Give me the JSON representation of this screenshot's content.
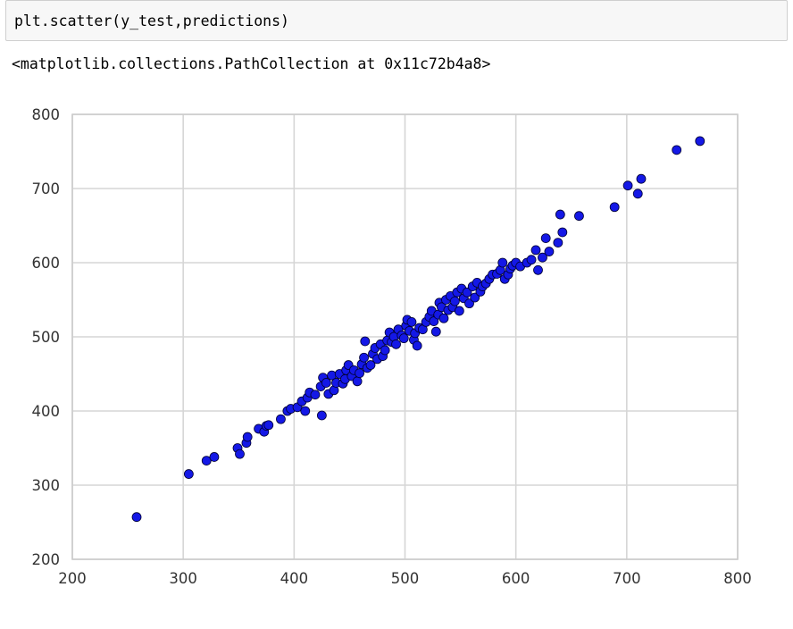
{
  "code_cell": {
    "code": "plt.scatter(y_test,predictions)"
  },
  "output": {
    "text": "<matplotlib.collections.PathCollection at 0x11c72b4a8>"
  },
  "chart_data": {
    "type": "scatter",
    "title": "",
    "xlabel": "",
    "ylabel": "",
    "xlim": [
      200,
      800
    ],
    "ylim": [
      200,
      800
    ],
    "xticks": [
      200,
      300,
      400,
      500,
      600,
      700,
      800
    ],
    "yticks": [
      200,
      300,
      400,
      500,
      600,
      700,
      800
    ],
    "grid": true,
    "marker_color": "#1418e6",
    "marker_edge_color": "#000033",
    "axes_edge_color": "#cccccc",
    "grid_color": "#d6d6d6",
    "points": [
      [
        258,
        257
      ],
      [
        305,
        315
      ],
      [
        321,
        333
      ],
      [
        328,
        338
      ],
      [
        349,
        350
      ],
      [
        351,
        342
      ],
      [
        357,
        357
      ],
      [
        358,
        365
      ],
      [
        368,
        376
      ],
      [
        373,
        372
      ],
      [
        375,
        380
      ],
      [
        377,
        381
      ],
      [
        388,
        389
      ],
      [
        394,
        400
      ],
      [
        397,
        403
      ],
      [
        403,
        405
      ],
      [
        407,
        413
      ],
      [
        410,
        400
      ],
      [
        412,
        418
      ],
      [
        414,
        425
      ],
      [
        419,
        422
      ],
      [
        424,
        433
      ],
      [
        425,
        394
      ],
      [
        426,
        445
      ],
      [
        429,
        438
      ],
      [
        431,
        423
      ],
      [
        434,
        448
      ],
      [
        436,
        428
      ],
      [
        438,
        438
      ],
      [
        441,
        450
      ],
      [
        444,
        437
      ],
      [
        446,
        443
      ],
      [
        447,
        455
      ],
      [
        449,
        462
      ],
      [
        452,
        447
      ],
      [
        454,
        455
      ],
      [
        457,
        440
      ],
      [
        459,
        451
      ],
      [
        461,
        463
      ],
      [
        463,
        472
      ],
      [
        464,
        494
      ],
      [
        466,
        458
      ],
      [
        469,
        462
      ],
      [
        471,
        477
      ],
      [
        473,
        485
      ],
      [
        475,
        470
      ],
      [
        478,
        490
      ],
      [
        480,
        474
      ],
      [
        482,
        482
      ],
      [
        484,
        495
      ],
      [
        486,
        506
      ],
      [
        488,
        493
      ],
      [
        490,
        500
      ],
      [
        492,
        490
      ],
      [
        494,
        510
      ],
      [
        497,
        502
      ],
      [
        499,
        498
      ],
      [
        501,
        515
      ],
      [
        502,
        523
      ],
      [
        504,
        508
      ],
      [
        506,
        520
      ],
      [
        508,
        496
      ],
      [
        509,
        505
      ],
      [
        511,
        488
      ],
      [
        513,
        512
      ],
      [
        516,
        510
      ],
      [
        519,
        520
      ],
      [
        522,
        527
      ],
      [
        524,
        535
      ],
      [
        526,
        521
      ],
      [
        528,
        507
      ],
      [
        530,
        530
      ],
      [
        531,
        546
      ],
      [
        533,
        540
      ],
      [
        535,
        525
      ],
      [
        537,
        550
      ],
      [
        539,
        536
      ],
      [
        541,
        555
      ],
      [
        543,
        540
      ],
      [
        545,
        548
      ],
      [
        547,
        560
      ],
      [
        549,
        535
      ],
      [
        551,
        565
      ],
      [
        553,
        552
      ],
      [
        556,
        560
      ],
      [
        558,
        545
      ],
      [
        561,
        568
      ],
      [
        563,
        553
      ],
      [
        565,
        573
      ],
      [
        568,
        561
      ],
      [
        570,
        568
      ],
      [
        573,
        572
      ],
      [
        576,
        578
      ],
      [
        579,
        584
      ],
      [
        583,
        585
      ],
      [
        586,
        590
      ],
      [
        588,
        600
      ],
      [
        590,
        578
      ],
      [
        593,
        584
      ],
      [
        595,
        592
      ],
      [
        597,
        596
      ],
      [
        600,
        600
      ],
      [
        604,
        595
      ],
      [
        610,
        600
      ],
      [
        614,
        604
      ],
      [
        618,
        617
      ],
      [
        620,
        590
      ],
      [
        624,
        607
      ],
      [
        627,
        633
      ],
      [
        630,
        615
      ],
      [
        638,
        627
      ],
      [
        640,
        665
      ],
      [
        642,
        641
      ],
      [
        657,
        663
      ],
      [
        689,
        675
      ],
      [
        701,
        704
      ],
      [
        710,
        693
      ],
      [
        713,
        713
      ],
      [
        745,
        752
      ],
      [
        766,
        764
      ]
    ]
  }
}
